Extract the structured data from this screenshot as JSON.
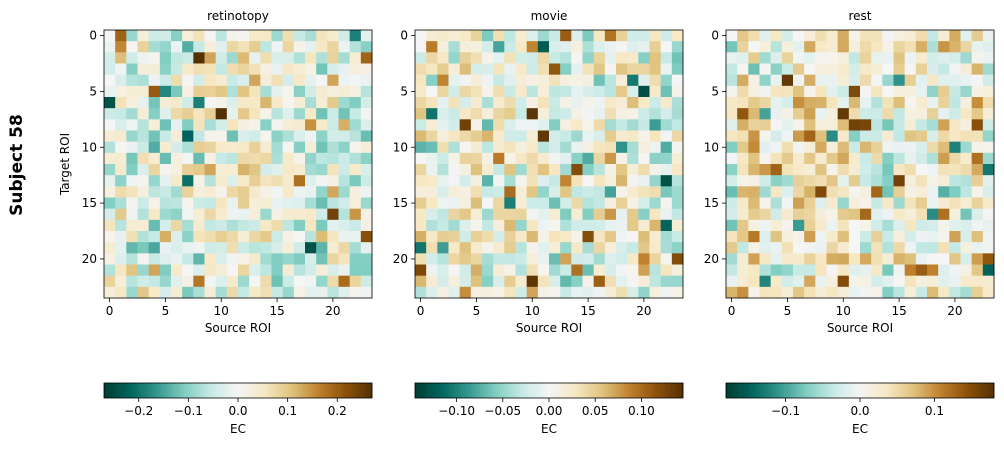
{
  "figure": {
    "suptitle": "Subject 58"
  },
  "chart_data": [
    {
      "type": "heatmap",
      "title": "retinotopy",
      "xlabel": "Source ROI",
      "ylabel": "Target ROI",
      "n": 24,
      "xticks": [
        0,
        5,
        10,
        15,
        20
      ],
      "yticks": [
        0,
        5,
        10,
        15,
        20
      ],
      "colormap": "BrBG_r",
      "colorbar": {
        "label": "EC",
        "vmin": -0.27,
        "vmax": 0.27,
        "ticks": [
          -0.2,
          -0.1,
          0.0,
          0.1,
          0.2
        ],
        "tick_labels": [
          "−0.2",
          "−0.1",
          "0.0",
          "0.1",
          "0.2"
        ]
      },
      "highlights": [
        {
          "row": 0,
          "col": 0,
          "value": 0
        },
        {
          "row": 7,
          "col": 10,
          "value": 0.27
        },
        {
          "row": 9,
          "col": 7,
          "value": -0.22
        },
        {
          "row": 19,
          "col": 18,
          "value": -0.24
        },
        {
          "row": 18,
          "col": 23,
          "value": 0.22
        },
        {
          "row": 13,
          "col": 17,
          "value": 0.18
        },
        {
          "row": 22,
          "col": 15,
          "value": -0.12
        }
      ],
      "seed": 58
    },
    {
      "type": "heatmap",
      "title": "movie",
      "xlabel": "Source ROI",
      "ylabel": "",
      "n": 24,
      "xticks": [
        0,
        5,
        10,
        15,
        20
      ],
      "yticks": [
        0,
        5,
        10,
        15,
        20
      ],
      "colormap": "BrBG_r",
      "colorbar": {
        "label": "EC",
        "vmin": -0.145,
        "vmax": 0.145,
        "ticks": [
          -0.1,
          -0.05,
          0.0,
          0.05,
          0.1
        ],
        "tick_labels": [
          "−0.10",
          "−0.05",
          "0.00",
          "0.05",
          "0.10"
        ]
      },
      "highlights": [
        {
          "row": 0,
          "col": 0,
          "value": 0
        },
        {
          "row": 7,
          "col": 10,
          "value": 0.14
        },
        {
          "row": 8,
          "col": 4,
          "value": 0.13
        },
        {
          "row": 22,
          "col": 10,
          "value": 0.14
        },
        {
          "row": 12,
          "col": 14,
          "value": 0.12
        },
        {
          "row": 18,
          "col": 15,
          "value": 0.12
        },
        {
          "row": 1,
          "col": 7,
          "value": -0.08
        },
        {
          "row": 10,
          "col": 18,
          "value": -0.09
        },
        {
          "row": 20,
          "col": 23,
          "value": 0.12
        }
      ],
      "seed": 1058
    },
    {
      "type": "heatmap",
      "title": "rest",
      "xlabel": "Source ROI",
      "ylabel": "",
      "n": 24,
      "xticks": [
        0,
        5,
        10,
        15,
        20
      ],
      "yticks": [
        0,
        5,
        10,
        15,
        20
      ],
      "colormap": "BrBG_r",
      "colorbar": {
        "label": "EC",
        "vmin": -0.18,
        "vmax": 0.18,
        "ticks": [
          -0.1,
          0.0,
          0.1
        ],
        "tick_labels": [
          "−0.1",
          "0.0",
          "0.1"
        ]
      },
      "highlights": [
        {
          "row": 0,
          "col": 0,
          "value": 0
        },
        {
          "row": 7,
          "col": 10,
          "value": 0.17
        },
        {
          "row": 8,
          "col": 11,
          "value": 0.16
        },
        {
          "row": 13,
          "col": 15,
          "value": 0.16
        },
        {
          "row": 22,
          "col": 10,
          "value": 0.15
        },
        {
          "row": 20,
          "col": 23,
          "value": 0.14
        },
        {
          "row": 11,
          "col": 22,
          "value": 0.12
        },
        {
          "row": 16,
          "col": 19,
          "value": 0.12
        }
      ],
      "seed": 2058
    }
  ]
}
